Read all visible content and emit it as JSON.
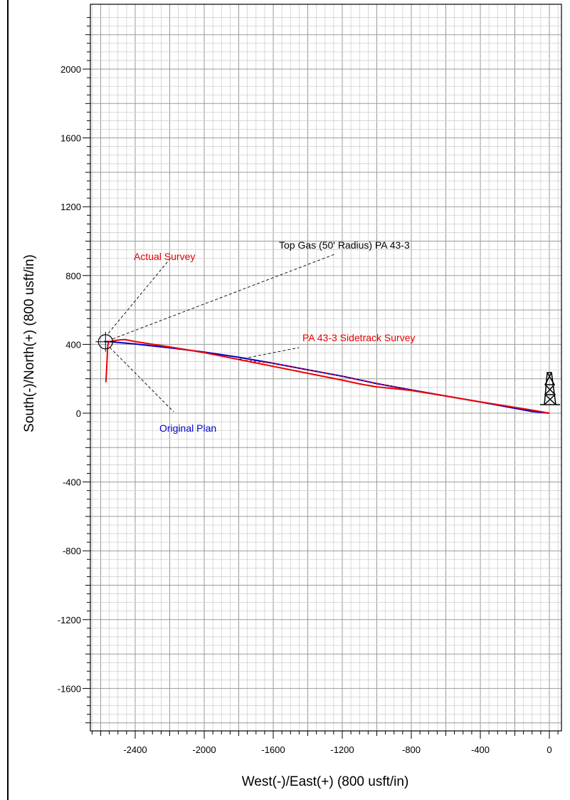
{
  "chart_data": {
    "type": "line",
    "xlabel": "West(-)/East(+) (800 usft/in)",
    "ylabel": "South(-)/North(+) (800 usft/in)",
    "xlim": [
      -2650,
      80
    ],
    "ylim": [
      -1860,
      2340
    ],
    "x_ticks": [
      -2400,
      -2000,
      -1600,
      -1200,
      -800,
      -400,
      0
    ],
    "y_ticks": [
      -1600,
      -1200,
      -800,
      -400,
      0,
      400,
      800,
      1200,
      1600,
      2000
    ],
    "grid": true,
    "series": [
      {
        "name": "Original Plan",
        "color": "#0000cc",
        "style": "solid",
        "points": [
          [
            0,
            0
          ],
          [
            -100,
            10
          ],
          [
            -200,
            28
          ],
          [
            -400,
            65
          ],
          [
            -600,
            100
          ],
          [
            -800,
            135
          ],
          [
            -1000,
            172
          ],
          [
            -1200,
            215
          ],
          [
            -1400,
            252
          ],
          [
            -1600,
            290
          ],
          [
            -1800,
            325
          ],
          [
            -2000,
            355
          ],
          [
            -2200,
            380
          ],
          [
            -2400,
            402
          ],
          [
            -2555,
            416
          ],
          [
            -2580,
            416
          ]
        ]
      },
      {
        "name": "Actual Survey",
        "color": "#ee0000",
        "style": "solid",
        "points": [
          [
            0,
            0
          ],
          [
            -100,
            18
          ],
          [
            -200,
            34
          ],
          [
            -400,
            66
          ],
          [
            -600,
            100
          ],
          [
            -800,
            132
          ],
          [
            -900,
            143
          ],
          [
            -1000,
            153
          ],
          [
            -1100,
            170
          ],
          [
            -1200,
            192
          ],
          [
            -1400,
            232
          ],
          [
            -1600,
            272
          ],
          [
            -1800,
            312
          ],
          [
            -2000,
            352
          ],
          [
            -2200,
            385
          ],
          [
            -2400,
            416
          ],
          [
            -2460,
            428
          ],
          [
            -2500,
            425
          ],
          [
            -2540,
            418
          ],
          [
            -2555,
            415
          ],
          [
            -2560,
            380
          ],
          [
            -2565,
            270
          ],
          [
            -2570,
            180
          ]
        ]
      },
      {
        "name": "PA 43-3 Sidetrack Survey",
        "color": "#ee0000",
        "style": "dashed",
        "points": [
          [
            -800,
            132
          ],
          [
            -1000,
            173
          ],
          [
            -1200,
            215
          ],
          [
            -1400,
            252
          ],
          [
            -1600,
            290
          ],
          [
            -1800,
            310
          ]
        ]
      }
    ],
    "target": {
      "name": "Top Gas (50' Radius) PA 43-3",
      "x": -2572,
      "y": 415
    },
    "rig_symbol": {
      "x": 0,
      "y": 0
    },
    "annotations": [
      {
        "text": "Actual Survey",
        "color": "#ee0000"
      },
      {
        "text": "Top Gas (50' Radius) PA 43-3",
        "color": "#000000"
      },
      {
        "text": "PA 43-3 Sidetrack Survey",
        "color": "#ee0000"
      },
      {
        "text": "Original Plan",
        "color": "#0000cc"
      }
    ]
  }
}
